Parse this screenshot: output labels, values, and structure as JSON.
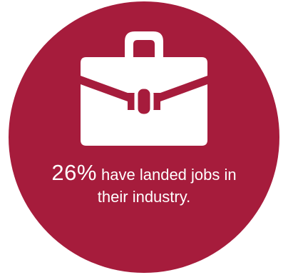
{
  "colors": {
    "circle": "#a61c3c",
    "foreground": "#ffffff"
  },
  "icon": "briefcase-icon",
  "stat": {
    "number": "26%",
    "line1": " have landed jobs in",
    "line2": "their industry."
  }
}
